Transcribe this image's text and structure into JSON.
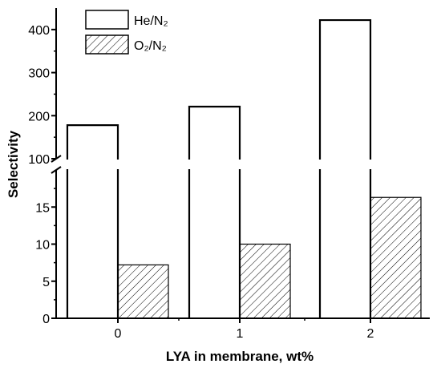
{
  "chart_data": {
    "type": "bar",
    "categories": [
      "0",
      "1",
      "2"
    ],
    "xlabel": "LYA in membrane, wt%",
    "ylabel": "Selectivity",
    "series": [
      {
        "name": "He/N₂",
        "values": [
          178,
          221,
          422
        ],
        "fill": "#ffffff"
      },
      {
        "name": "O₂/N₂",
        "values": [
          7.2,
          10.0,
          16.3
        ],
        "fill": "hatched"
      }
    ],
    "y_axis_broken": true,
    "y_lower_range": [
      0,
      20
    ],
    "y_upper_range": [
      100,
      450
    ],
    "y_lower_ticks": [
      "0",
      "5",
      "10",
      "15"
    ],
    "y_upper_ticks": [
      "100",
      "200",
      "300",
      "400"
    ],
    "legend_position": "top-left",
    "grid": false,
    "colors": {
      "stroke": "#000000",
      "background": "#ffffff"
    }
  }
}
